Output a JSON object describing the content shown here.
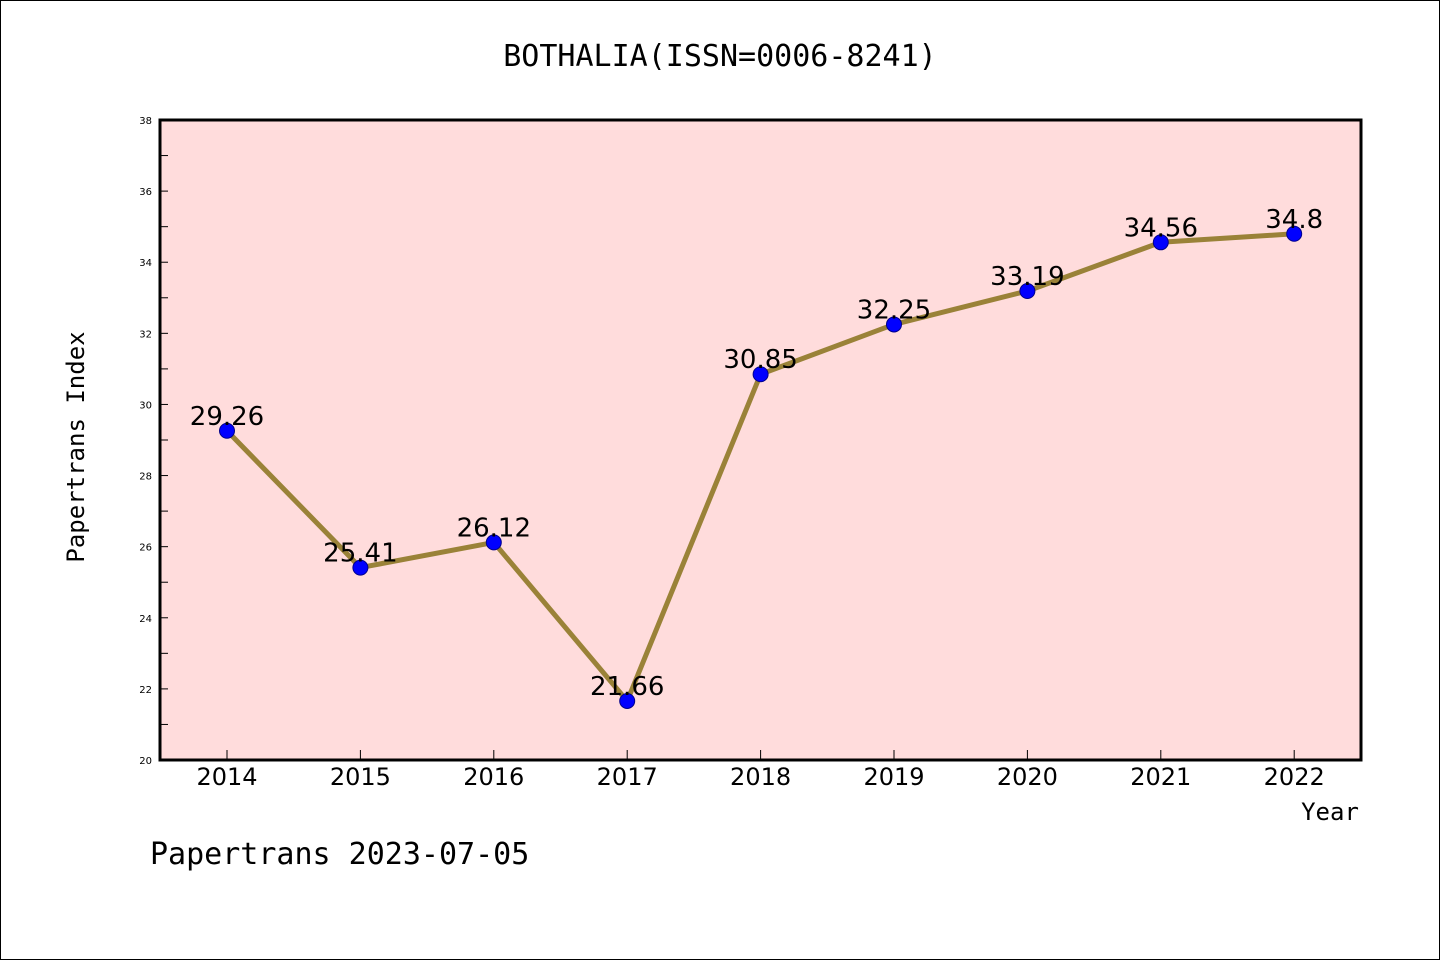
{
  "chart_data": {
    "type": "line",
    "title": "BOTHALIA(ISSN=0006-8241)",
    "xlabel": "Year",
    "ylabel": "Papertrans Index",
    "categories": [
      "2014",
      "2015",
      "2016",
      "2017",
      "2018",
      "2019",
      "2020",
      "2021",
      "2022"
    ],
    "values": [
      29.26,
      25.41,
      26.12,
      21.66,
      30.85,
      32.25,
      33.19,
      34.56,
      34.8
    ],
    "data_labels": [
      "29.26",
      "25.41",
      "26.12",
      "21.66",
      "30.85",
      "32.25",
      "33.19",
      "34.56",
      "34.8"
    ],
    "ylim": [
      20,
      38
    ],
    "yticks": [
      "20",
      "22",
      "24",
      "26",
      "28",
      "30",
      "32",
      "34",
      "36",
      "38"
    ],
    "grid": false,
    "colors": {
      "plot_background": "#ffdcdc",
      "line": "#9a8238",
      "marker": "#0000ff"
    }
  },
  "footer": {
    "credit": "Papertrans 2023-07-05"
  }
}
